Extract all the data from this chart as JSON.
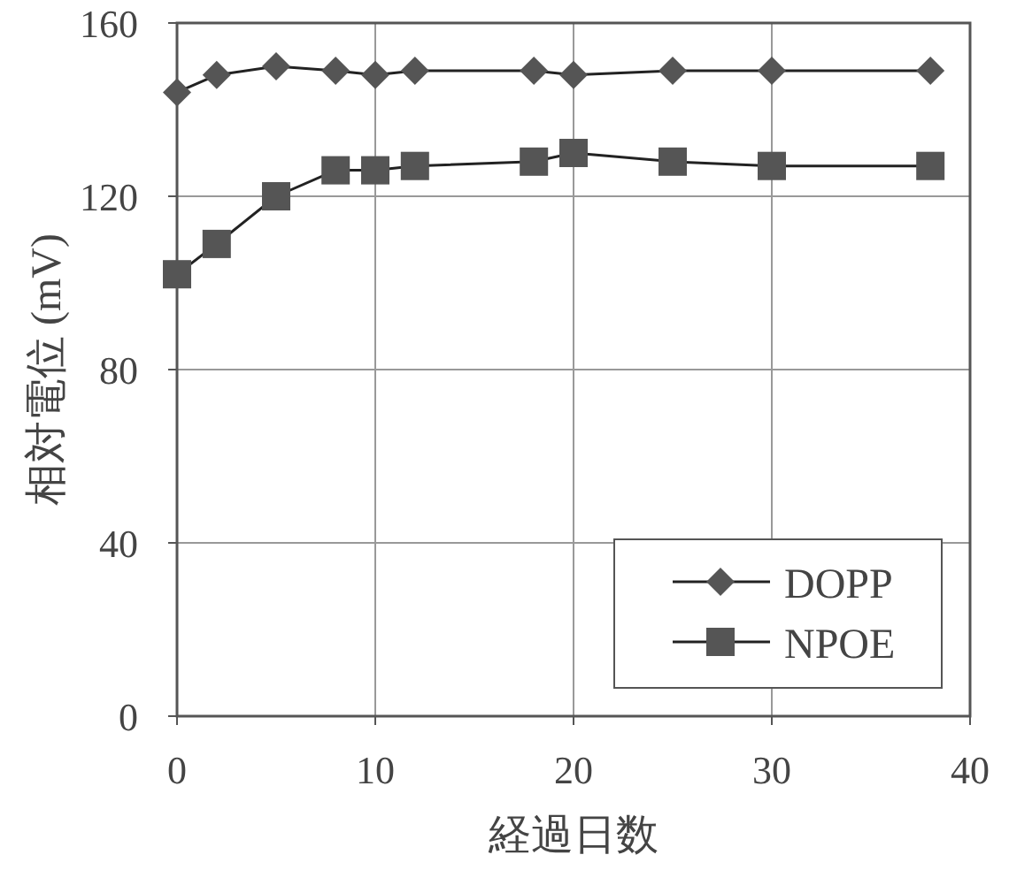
{
  "chart_data": {
    "type": "line",
    "xlabel": "経過日数",
    "ylabel": "相対電位 (mV)",
    "xlim": [
      0,
      40
    ],
    "xticks": [
      0,
      10,
      20,
      30,
      40
    ],
    "ylim": [
      0,
      160
    ],
    "yticks": [
      0,
      40,
      80,
      120,
      160
    ],
    "grid": true,
    "legend": "bottom right",
    "series": [
      {
        "name": "DOPP",
        "color": "#555555",
        "marker": "diamond",
        "x": [
          0,
          2,
          5,
          8,
          10,
          12,
          18,
          20,
          25,
          30,
          38
        ],
        "values": [
          144,
          148,
          150,
          149,
          148,
          149,
          149,
          148,
          149,
          149,
          149
        ]
      },
      {
        "name": "NPOE",
        "color": "#555555",
        "marker": "square",
        "x": [
          0,
          2,
          5,
          8,
          10,
          12,
          18,
          20,
          25,
          30,
          38
        ],
        "values": [
          102,
          109,
          120,
          126,
          126,
          127,
          128,
          130,
          128,
          127,
          127
        ]
      }
    ]
  }
}
